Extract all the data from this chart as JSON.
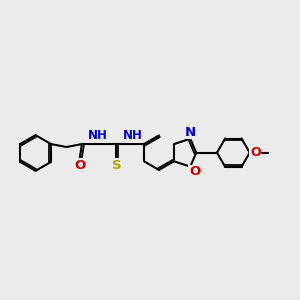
{
  "bg": "#ebebeb",
  "bc": "#000000",
  "Nc": "#0000cc",
  "Oc": "#cc0000",
  "Sc": "#aaaa00",
  "lw": 1.5,
  "lw_dbl": 1.2,
  "fs": 8.5,
  "figsize": [
    3.0,
    3.0
  ],
  "dpi": 100,
  "xlim": [
    0,
    10
  ],
  "ylim": [
    2,
    8
  ]
}
